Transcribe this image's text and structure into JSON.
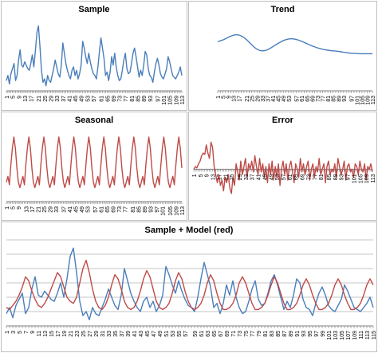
{
  "chart_data": [
    {
      "type": "line",
      "title": "Sample",
      "xlabel": "",
      "ylabel": "",
      "tick_labels": [
        "1",
        "5",
        "9",
        "13",
        "17",
        "21",
        "25",
        "29",
        "33",
        "37",
        "41",
        "45",
        "49",
        "53",
        "57",
        "61",
        "65",
        "69",
        "73",
        "77",
        "81",
        "85",
        "89",
        "93",
        "97",
        "101",
        "105",
        "109",
        "113"
      ],
      "series": [
        {
          "color": "#4a7ebb",
          "values": [
            30,
            33,
            28,
            34,
            37,
            40,
            30,
            33,
            42,
            48,
            39,
            38,
            41,
            39,
            37,
            36,
            40,
            45,
            38,
            47,
            58,
            62,
            50,
            36,
            29,
            31,
            27,
            33,
            30,
            29,
            33,
            37,
            42,
            38,
            34,
            32,
            39,
            52,
            46,
            40,
            36,
            33,
            31,
            36,
            38,
            33,
            36,
            31,
            34,
            39,
            53,
            49,
            44,
            40,
            46,
            41,
            37,
            34,
            33,
            31,
            38,
            47,
            55,
            49,
            43,
            33,
            35,
            30,
            35,
            44,
            39,
            46,
            38,
            33,
            30,
            31,
            36,
            42,
            46,
            37,
            34,
            35,
            40,
            46,
            49,
            44,
            38,
            32,
            36,
            33,
            39,
            47,
            45,
            37,
            33,
            32,
            29,
            35,
            40,
            43,
            39,
            34,
            32,
            31,
            34,
            37,
            44,
            41,
            37,
            33,
            32,
            31,
            33,
            35,
            38,
            33
          ]
        }
      ]
    },
    {
      "type": "line",
      "title": "Trend",
      "xlabel": "",
      "ylabel": "",
      "tick_labels": [
        "1",
        "5",
        "9",
        "13",
        "17",
        "21",
        "25",
        "29",
        "33",
        "37",
        "41",
        "45",
        "49",
        "53",
        "57",
        "61",
        "65",
        "69",
        "73",
        "77",
        "81",
        "85",
        "89",
        "93",
        "97",
        "101",
        "105",
        "109",
        "113"
      ],
      "series": [
        {
          "color": "#4a7ebb",
          "values": [
            46,
            46.4,
            46.8,
            47.3,
            47.9,
            48.4,
            48.8,
            49,
            48.9,
            48.5,
            47.8,
            46.9,
            45.8,
            44.7,
            43.6,
            42.8,
            42.3,
            42.1,
            42.2,
            42.6,
            43.2,
            43.9,
            44.6,
            45.3,
            45.9,
            46.5,
            46.9,
            47.2,
            47.3,
            47.2,
            47,
            46.6,
            46.2,
            45.7,
            45.2,
            44.7,
            44.2,
            43.8,
            43.4,
            43.1,
            42.8,
            42.6,
            42.4,
            42.2,
            42.1,
            42,
            41.9,
            41.7,
            41.5,
            41.4,
            41.2,
            41.1,
            41,
            41,
            40.9,
            40.9,
            40.9,
            40.9,
            40.9,
            40.9
          ]
        }
      ]
    },
    {
      "type": "line",
      "title": "Seasonal",
      "xlabel": "",
      "ylabel": "",
      "tick_labels": [
        "1",
        "5",
        "9",
        "13",
        "17",
        "21",
        "25",
        "29",
        "33",
        "37",
        "41",
        "45",
        "49",
        "53",
        "57",
        "61",
        "65",
        "69",
        "73",
        "77",
        "81",
        "85",
        "89",
        "93",
        "97",
        "101",
        "105",
        "109",
        "113"
      ],
      "series": [
        {
          "color": "#be4b48",
          "values": [
            -3,
            -1,
            -4,
            3,
            9,
            13,
            9,
            2,
            -3,
            -5,
            -3,
            -1,
            -4,
            3,
            9,
            13,
            9,
            2,
            -3,
            -5,
            -3,
            -1,
            -4,
            3,
            9,
            13,
            9,
            2,
            -3,
            -5,
            -3,
            -1,
            -4,
            3,
            9,
            13,
            9,
            2,
            -3,
            -5,
            -3,
            -1,
            -4,
            3,
            9,
            13,
            9,
            2,
            -3,
            -5,
            -3,
            -1,
            -4,
            3,
            9,
            13,
            9,
            2,
            -3,
            -5,
            -3,
            -1,
            -4,
            3,
            9,
            13,
            9,
            2,
            -3,
            -5,
            -3,
            -1,
            -4,
            3,
            9,
            13,
            9,
            2,
            -3,
            -5,
            -3,
            -1,
            -4,
            3,
            9,
            13,
            9,
            2,
            -3,
            -5,
            -3,
            -1,
            -4,
            3,
            9,
            13,
            9,
            2,
            -3,
            -5,
            -3,
            -1,
            -4,
            3,
            9,
            13,
            9,
            2,
            -3,
            -5,
            -3,
            -1,
            -4,
            3,
            9,
            13,
            9,
            2
          ]
        }
      ]
    },
    {
      "type": "line",
      "title": "Error",
      "xlabel": "",
      "ylabel": "",
      "tick_labels": [
        "1",
        "5",
        "9",
        "13",
        "17",
        "21",
        "25",
        "29",
        "33",
        "37",
        "41",
        "45",
        "49",
        "53",
        "57",
        "61",
        "65",
        "69",
        "73",
        "77",
        "81",
        "85",
        "89",
        "93",
        "97",
        "101",
        "105",
        "109",
        "113"
      ],
      "series": [
        {
          "color": "#be4b48",
          "values": [
            0,
            1,
            0.5,
            2,
            3,
            5,
            6,
            5.5,
            9,
            6,
            4,
            10,
            8,
            1,
            -2,
            -5,
            -2,
            -6,
            -4,
            -8,
            -3,
            -5,
            -2,
            -7,
            -9,
            -3,
            -6,
            2,
            -1,
            -4,
            3,
            -2,
            1,
            4,
            -3,
            2,
            0,
            3,
            -1,
            5,
            1,
            -2,
            4,
            -1,
            2,
            -3,
            1,
            -5,
            2,
            -2,
            3,
            -4,
            1,
            -3,
            2,
            -6,
            0,
            3,
            -2,
            2,
            -4,
            1,
            3,
            -1,
            -5,
            2,
            0,
            -3,
            4,
            -1,
            2,
            -2,
            1,
            3,
            -4,
            0,
            2,
            -3,
            1,
            -1,
            4,
            -2,
            0,
            2,
            -5,
            1,
            3,
            -2,
            0,
            -1,
            2,
            -3,
            4,
            1,
            -2,
            0,
            3,
            -4,
            1,
            2,
            -1,
            0,
            -3,
            2,
            1,
            -2,
            3,
            0,
            -1,
            2,
            -4,
            1,
            0,
            2,
            -1
          ]
        }
      ]
    },
    {
      "type": "line",
      "title": "Sample + Model (red)",
      "xlabel": "",
      "ylabel": "",
      "tick_labels": [
        "1",
        "3",
        "5",
        "7",
        "9",
        "11",
        "13",
        "15",
        "17",
        "19",
        "21",
        "23",
        "25",
        "27",
        "29",
        "31",
        "33",
        "35",
        "37",
        "39",
        "41",
        "43",
        "45",
        "47",
        "49",
        "51",
        "53",
        "55",
        "57",
        "59",
        "61",
        "63",
        "65",
        "67",
        "69",
        "71",
        "73",
        "75",
        "77",
        "79",
        "81",
        "83",
        "85",
        "87",
        "89",
        "91",
        "93",
        "95",
        "97",
        "99",
        "101",
        "103",
        "105",
        "107",
        "109",
        "111",
        "113",
        "115"
      ],
      "series": [
        {
          "name": "Sample",
          "color": "#4a7ebb",
          "values": [
            30,
            33,
            28,
            34,
            37,
            40,
            30,
            33,
            42,
            48,
            39,
            38,
            41,
            39,
            37,
            36,
            40,
            45,
            38,
            47,
            58,
            62,
            50,
            36,
            29,
            31,
            27,
            33,
            30,
            29,
            33,
            37,
            42,
            38,
            34,
            32,
            39,
            52,
            46,
            40,
            36,
            33,
            31,
            36,
            38,
            33,
            36,
            31,
            34,
            39,
            53,
            49,
            44,
            40,
            46,
            41,
            37,
            34,
            33,
            31,
            38,
            47,
            55,
            49,
            43,
            33,
            35,
            30,
            35,
            44,
            39,
            46,
            38,
            33,
            30,
            31,
            36,
            42,
            46,
            37,
            34,
            35,
            40,
            46,
            49,
            44,
            38,
            32,
            36,
            33,
            39,
            47,
            45,
            37,
            33,
            32,
            29,
            35,
            40,
            43,
            39,
            34,
            32,
            31,
            34,
            37,
            44,
            41,
            37,
            33,
            32,
            31,
            33,
            35,
            38,
            33
          ]
        },
        {
          "name": "Model",
          "color": "#be4b48",
          "values": [
            33,
            32,
            34,
            36,
            39,
            43,
            48,
            46,
            41,
            37,
            34,
            33,
            35,
            38,
            42,
            46,
            50,
            48,
            43,
            38,
            36,
            35,
            38,
            45,
            52,
            56,
            50,
            42,
            36,
            33,
            32,
            34,
            38,
            44,
            49,
            47,
            42,
            36,
            33,
            32,
            33,
            36,
            41,
            47,
            51,
            48,
            42,
            36,
            33,
            32,
            33,
            35,
            40,
            46,
            50,
            47,
            41,
            36,
            33,
            32,
            33,
            35,
            39,
            45,
            49,
            46,
            40,
            35,
            32,
            32,
            33,
            35,
            39,
            45,
            48,
            45,
            40,
            35,
            32,
            32,
            33,
            35,
            39,
            44,
            48,
            45,
            40,
            35,
            32,
            32,
            33,
            35,
            39,
            44,
            47,
            44,
            39,
            35,
            32,
            32,
            33,
            35,
            39,
            44,
            47,
            44,
            39,
            35,
            32,
            32,
            33,
            35,
            39,
            44,
            47,
            44
          ]
        }
      ]
    }
  ]
}
